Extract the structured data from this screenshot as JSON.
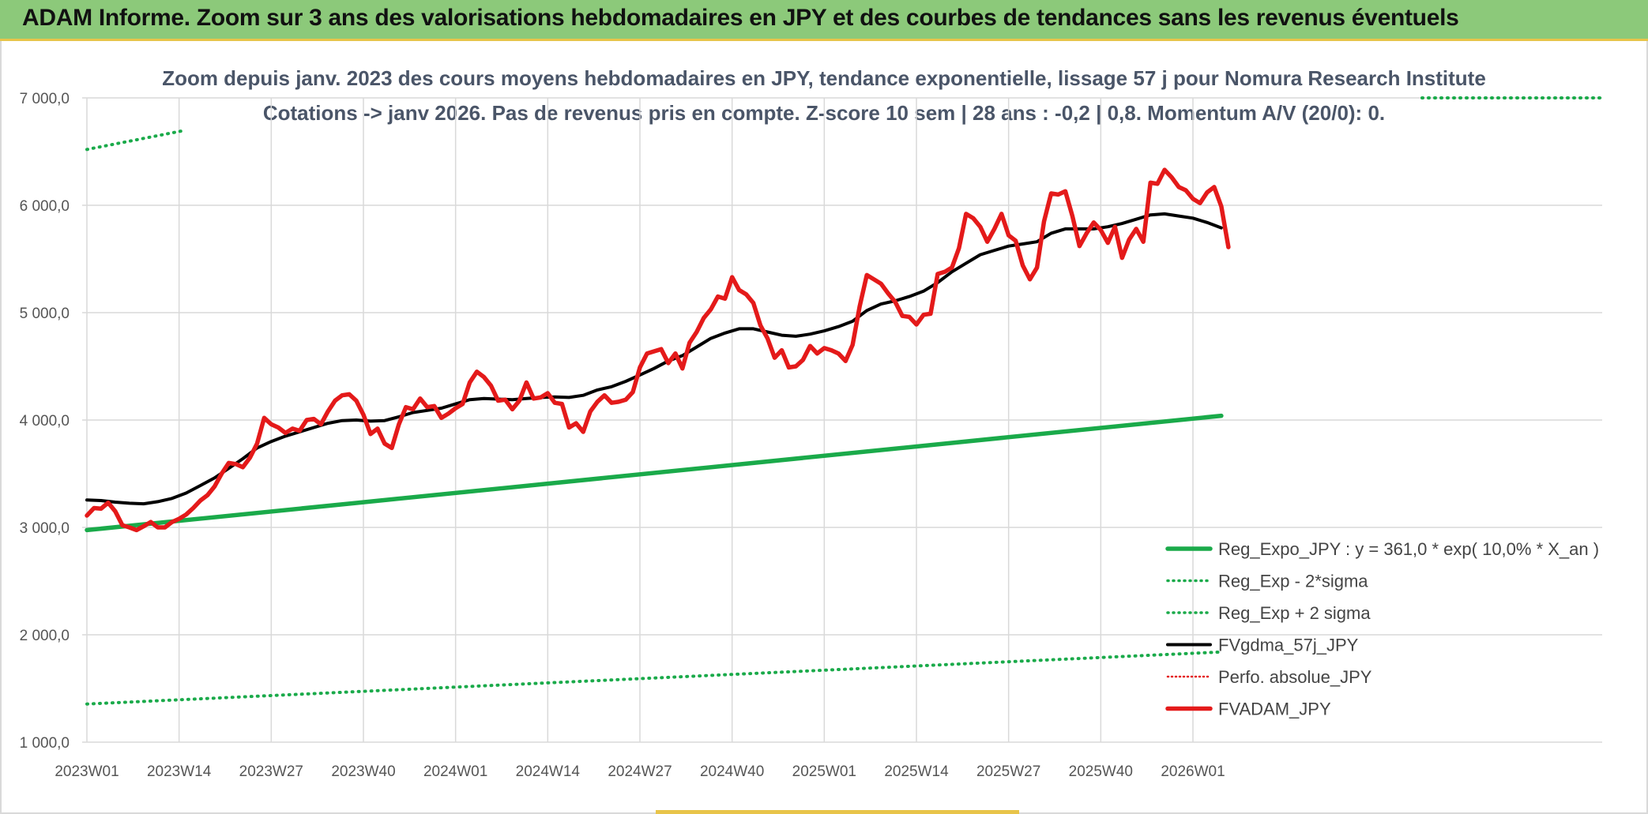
{
  "header": {
    "title": "ADAM Informe. Zoom sur 3 ans des valorisations hebdomadaires en JPY et des courbes de tendances sans les revenus éventuels"
  },
  "chart_data": {
    "type": "line",
    "title_line1": "Zoom depuis janv. 2023 des cours moyens hebdomadaires en JPY, tendance exponentielle, lissage 57 j pour Nomura Research Institute",
    "title_line2": "Cotations -> janv 2026. Pas de revenus pris en compte. Z-score 10 sem | 28 ans : -0,2 | 0,8. Momentum A/V (20/0): 0.",
    "ylim": [
      1000,
      7000
    ],
    "y_ticks": [
      1000,
      2000,
      3000,
      4000,
      5000,
      6000,
      7000
    ],
    "y_tick_labels": [
      "1 000,0",
      "2 000,0",
      "3 000,0",
      "4 000,0",
      "5 000,0",
      "6 000,0",
      "7 000,0"
    ],
    "x_ticks": [
      {
        "week": 0,
        "label": "2023W01"
      },
      {
        "week": 13,
        "label": "2023W14"
      },
      {
        "week": 26,
        "label": "2023W27"
      },
      {
        "week": 39,
        "label": "2023W40"
      },
      {
        "week": 52,
        "label": "2024W01"
      },
      {
        "week": 65,
        "label": "2024W14"
      },
      {
        "week": 78,
        "label": "2024W27"
      },
      {
        "week": 91,
        "label": "2024W40"
      },
      {
        "week": 104,
        "label": "2025W01"
      },
      {
        "week": 117,
        "label": "2025W14"
      },
      {
        "week": 130,
        "label": "2025W27"
      },
      {
        "week": 143,
        "label": "2025W40"
      },
      {
        "week": 156,
        "label": "2026W01"
      }
    ],
    "grid": true,
    "legend_position": "bottom-right",
    "series": [
      {
        "name": "Reg_Expo_JPY : y = 361,0 * exp( 10,0% *  X_an )",
        "color": "#1aaa4a",
        "style": "solid-thick",
        "points": [
          [
            0,
            2975
          ],
          [
            160,
            4040
          ]
        ]
      },
      {
        "name": "Reg_Exp - 2*sigma",
        "color": "#1aaa4a",
        "style": "dotted",
        "points": [
          [
            0,
            1355
          ],
          [
            160,
            1840
          ]
        ]
      },
      {
        "name": "Reg_Exp + 2 sigma",
        "color": "#1aaa4a",
        "style": "dotted",
        "points": [
          [
            0,
            6520
          ],
          [
            14,
            6700
          ]
        ]
      },
      {
        "name": "FVgdma_57j_JPY",
        "color": "#000000",
        "style": "solid",
        "points": [
          [
            0,
            3255
          ],
          [
            2,
            3250
          ],
          [
            4,
            3235
          ],
          [
            6,
            3225
          ],
          [
            8,
            3220
          ],
          [
            10,
            3240
          ],
          [
            12,
            3270
          ],
          [
            14,
            3320
          ],
          [
            16,
            3390
          ],
          [
            18,
            3460
          ],
          [
            20,
            3550
          ],
          [
            22,
            3640
          ],
          [
            24,
            3740
          ],
          [
            26,
            3800
          ],
          [
            28,
            3850
          ],
          [
            30,
            3890
          ],
          [
            32,
            3930
          ],
          [
            34,
            3970
          ],
          [
            36,
            3995
          ],
          [
            38,
            4000
          ],
          [
            40,
            3990
          ],
          [
            42,
            3995
          ],
          [
            44,
            4030
          ],
          [
            46,
            4070
          ],
          [
            48,
            4090
          ],
          [
            50,
            4110
          ],
          [
            52,
            4150
          ],
          [
            54,
            4190
          ],
          [
            56,
            4200
          ],
          [
            58,
            4195
          ],
          [
            60,
            4190
          ],
          [
            62,
            4200
          ],
          [
            64,
            4210
          ],
          [
            66,
            4215
          ],
          [
            68,
            4210
          ],
          [
            70,
            4230
          ],
          [
            72,
            4280
          ],
          [
            74,
            4310
          ],
          [
            76,
            4360
          ],
          [
            78,
            4420
          ],
          [
            80,
            4480
          ],
          [
            82,
            4550
          ],
          [
            84,
            4600
          ],
          [
            86,
            4680
          ],
          [
            88,
            4760
          ],
          [
            90,
            4810
          ],
          [
            92,
            4850
          ],
          [
            94,
            4850
          ],
          [
            96,
            4820
          ],
          [
            98,
            4790
          ],
          [
            100,
            4780
          ],
          [
            102,
            4800
          ],
          [
            104,
            4830
          ],
          [
            106,
            4870
          ],
          [
            108,
            4920
          ],
          [
            110,
            5020
          ],
          [
            112,
            5080
          ],
          [
            114,
            5110
          ],
          [
            116,
            5150
          ],
          [
            118,
            5200
          ],
          [
            120,
            5280
          ],
          [
            122,
            5380
          ],
          [
            124,
            5460
          ],
          [
            126,
            5540
          ],
          [
            128,
            5580
          ],
          [
            130,
            5620
          ],
          [
            132,
            5640
          ],
          [
            134,
            5660
          ],
          [
            136,
            5740
          ],
          [
            138,
            5780
          ],
          [
            140,
            5780
          ],
          [
            142,
            5780
          ],
          [
            144,
            5800
          ],
          [
            146,
            5830
          ],
          [
            148,
            5870
          ],
          [
            150,
            5910
          ],
          [
            152,
            5920
          ],
          [
            154,
            5900
          ],
          [
            156,
            5880
          ],
          [
            158,
            5840
          ],
          [
            160,
            5790
          ]
        ]
      },
      {
        "name": "Perfo. absolue_JPY",
        "color": "#e41a1a",
        "style": "dotted",
        "points": []
      },
      {
        "name": "FVADAM_JPY",
        "color": "#e41a1a",
        "style": "solid-thick",
        "points": [
          [
            0,
            3110
          ],
          [
            1,
            3180
          ],
          [
            2,
            3175
          ],
          [
            3,
            3230
          ],
          [
            4,
            3150
          ],
          [
            5,
            3020
          ],
          [
            6,
            3000
          ],
          [
            7,
            2975
          ],
          [
            8,
            3010
          ],
          [
            9,
            3050
          ],
          [
            10,
            3000
          ],
          [
            11,
            3000
          ],
          [
            12,
            3050
          ],
          [
            13,
            3080
          ],
          [
            14,
            3120
          ],
          [
            15,
            3180
          ],
          [
            16,
            3250
          ],
          [
            17,
            3300
          ],
          [
            18,
            3380
          ],
          [
            19,
            3500
          ],
          [
            20,
            3600
          ],
          [
            21,
            3590
          ],
          [
            22,
            3560
          ],
          [
            23,
            3650
          ],
          [
            24,
            3780
          ],
          [
            25,
            4020
          ],
          [
            26,
            3960
          ],
          [
            27,
            3930
          ],
          [
            28,
            3880
          ],
          [
            29,
            3920
          ],
          [
            30,
            3900
          ],
          [
            31,
            4000
          ],
          [
            32,
            4010
          ],
          [
            33,
            3960
          ],
          [
            34,
            4080
          ],
          [
            35,
            4180
          ],
          [
            36,
            4230
          ],
          [
            37,
            4240
          ],
          [
            38,
            4180
          ],
          [
            39,
            4050
          ],
          [
            40,
            3870
          ],
          [
            41,
            3920
          ],
          [
            42,
            3780
          ],
          [
            43,
            3740
          ],
          [
            44,
            3960
          ],
          [
            45,
            4120
          ],
          [
            46,
            4100
          ],
          [
            47,
            4200
          ],
          [
            48,
            4120
          ],
          [
            49,
            4130
          ],
          [
            50,
            4020
          ],
          [
            51,
            4060
          ],
          [
            52,
            4110
          ],
          [
            53,
            4150
          ],
          [
            54,
            4350
          ],
          [
            55,
            4450
          ],
          [
            56,
            4400
          ],
          [
            57,
            4320
          ],
          [
            58,
            4180
          ],
          [
            59,
            4190
          ],
          [
            60,
            4100
          ],
          [
            61,
            4180
          ],
          [
            62,
            4350
          ],
          [
            63,
            4200
          ],
          [
            64,
            4210
          ],
          [
            65,
            4250
          ],
          [
            66,
            4160
          ],
          [
            67,
            4150
          ],
          [
            68,
            3930
          ],
          [
            69,
            3970
          ],
          [
            70,
            3890
          ],
          [
            71,
            4080
          ],
          [
            72,
            4170
          ],
          [
            73,
            4230
          ],
          [
            74,
            4160
          ],
          [
            75,
            4170
          ],
          [
            76,
            4190
          ],
          [
            77,
            4260
          ],
          [
            78,
            4490
          ],
          [
            79,
            4620
          ],
          [
            80,
            4640
          ],
          [
            81,
            4660
          ],
          [
            82,
            4530
          ],
          [
            83,
            4620
          ],
          [
            84,
            4480
          ],
          [
            85,
            4720
          ],
          [
            86,
            4820
          ],
          [
            87,
            4950
          ],
          [
            88,
            5030
          ],
          [
            89,
            5150
          ],
          [
            90,
            5130
          ],
          [
            91,
            5330
          ],
          [
            92,
            5210
          ],
          [
            93,
            5170
          ],
          [
            94,
            5090
          ],
          [
            95,
            4880
          ],
          [
            96,
            4760
          ],
          [
            97,
            4580
          ],
          [
            98,
            4650
          ],
          [
            99,
            4490
          ],
          [
            100,
            4500
          ],
          [
            101,
            4560
          ],
          [
            102,
            4690
          ],
          [
            103,
            4620
          ],
          [
            104,
            4670
          ],
          [
            105,
            4650
          ],
          [
            106,
            4620
          ],
          [
            107,
            4550
          ],
          [
            108,
            4700
          ],
          [
            109,
            5060
          ],
          [
            110,
            5350
          ],
          [
            111,
            5310
          ],
          [
            112,
            5270
          ],
          [
            113,
            5180
          ],
          [
            114,
            5100
          ],
          [
            115,
            4970
          ],
          [
            116,
            4960
          ],
          [
            117,
            4890
          ],
          [
            118,
            4980
          ],
          [
            119,
            4990
          ],
          [
            120,
            5360
          ],
          [
            121,
            5380
          ],
          [
            122,
            5420
          ],
          [
            123,
            5600
          ],
          [
            124,
            5920
          ],
          [
            125,
            5880
          ],
          [
            126,
            5800
          ],
          [
            127,
            5660
          ],
          [
            128,
            5780
          ],
          [
            129,
            5920
          ],
          [
            130,
            5720
          ],
          [
            131,
            5670
          ],
          [
            132,
            5440
          ],
          [
            133,
            5310
          ],
          [
            134,
            5420
          ],
          [
            135,
            5850
          ],
          [
            136,
            6110
          ],
          [
            137,
            6100
          ],
          [
            138,
            6130
          ],
          [
            139,
            5900
          ],
          [
            140,
            5620
          ],
          [
            141,
            5740
          ],
          [
            142,
            5840
          ],
          [
            143,
            5770
          ],
          [
            144,
            5650
          ],
          [
            145,
            5800
          ],
          [
            146,
            5510
          ],
          [
            147,
            5680
          ],
          [
            148,
            5780
          ],
          [
            149,
            5660
          ],
          [
            150,
            6210
          ],
          [
            151,
            6200
          ],
          [
            152,
            6330
          ],
          [
            153,
            6260
          ],
          [
            154,
            6170
          ],
          [
            155,
            6140
          ],
          [
            156,
            6060
          ],
          [
            157,
            6020
          ],
          [
            158,
            6120
          ],
          [
            159,
            6170
          ],
          [
            160,
            5990
          ],
          [
            161,
            5610
          ]
        ]
      }
    ]
  }
}
